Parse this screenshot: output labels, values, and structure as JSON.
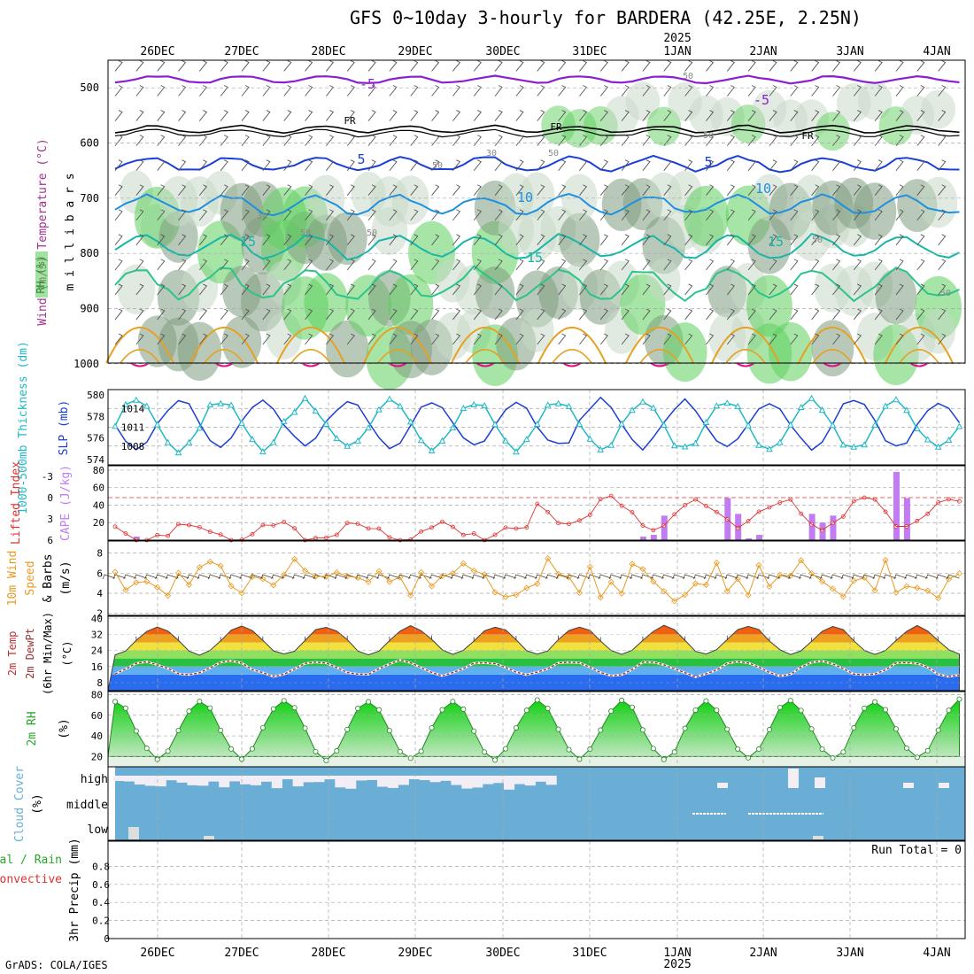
{
  "title": "GFS 0~10day 3-hourly for BARDERA (42.25E, 2.25N)",
  "credit": "GrADS: COLA/IGES",
  "colors": {
    "frame": "#000000",
    "grid": "#a8a8a8",
    "rh_dark": "#7f9c7f",
    "rh_mid": "#c6d8c6",
    "rh_light": "#e5f1e5",
    "rh_green": "#5fd05f",
    "iso_purple": "#8a1fd0",
    "iso_blue": "#1a3fd6",
    "iso_cyan": "#1e90e0",
    "iso_teal": "#17b6a8",
    "iso_green": "#2bc48a",
    "iso_orange": "#e8a020",
    "iso_magenta": "#e0108a",
    "slp": "#1b3fd1",
    "thickness": "#21b8c6",
    "li": "#e03030",
    "cape": "#c07cf0",
    "wind10": "#e89a20",
    "barb": "#504030",
    "dew": "#9a3030",
    "rh2m": "#28a828",
    "cloud": "#6aaed6",
    "cloud_clear": "#f2eef6"
  },
  "chart_data": [
    {
      "type": "contour",
      "name": "pressure-level cross-section",
      "ylabels": [
        "Wind (m/s)",
        "Temperature (°C)",
        "RH (%)",
        "m i l l i b a r s"
      ],
      "yticks": [
        500,
        600,
        700,
        800,
        900,
        1000
      ],
      "ylim": [
        450,
        1050
      ],
      "date_labels": [
        "26DEC",
        "27DEC",
        "28DEC",
        "29DEC",
        "30DEC",
        "31DEC",
        "1JAN",
        "2JAN",
        "3JAN",
        "4JAN"
      ],
      "year_label": "2025",
      "isotherm_labels": [
        "-5",
        "FR",
        "5",
        "10",
        "15",
        "15",
        "-5",
        "5",
        "10",
        "15",
        "FR",
        "FR"
      ],
      "rh_labels": [
        "50",
        "30",
        "50",
        "50",
        "50",
        "50",
        "50",
        "50",
        "50",
        "30"
      ],
      "isotherms_mb": {
        "-5": 485,
        "FR": 575,
        "5": 638,
        "10": 712,
        "15": 788,
        "20": 855
      }
    },
    {
      "type": "line",
      "name": "thickness-slp",
      "ylabel_left": "1000-500mb Thickness (dm)",
      "ylabel_right": "SLP (mb)",
      "yticks_left": [
        574,
        576,
        578,
        580
      ],
      "yticks_right": [
        1008,
        1011,
        1014
      ],
      "ylim_left": [
        573.5,
        580.5
      ],
      "series": [
        {
          "name": "SLP",
          "axis": "right",
          "pattern": "diurnal",
          "min": 1007.6,
          "max": 1015.6
        },
        {
          "name": "Thickness",
          "axis": "left",
          "pattern": "diurnal",
          "min": 574.8,
          "max": 579.6
        }
      ]
    },
    {
      "type": "bar",
      "name": "lifted-index-cape",
      "ylabel_left": "Lifted Index",
      "ylabel_right": "CAPE (J/kg)",
      "yticks_left": [
        -3,
        0,
        3,
        6
      ],
      "yticks_right": [
        20,
        40,
        60,
        80
      ],
      "cape_bars": [
        {
          "step": 2,
          "value": 4
        },
        {
          "step": 50,
          "value": 4
        },
        {
          "step": 51,
          "value": 6
        },
        {
          "step": 52,
          "value": 28
        },
        {
          "step": 58,
          "value": 48
        },
        {
          "step": 59,
          "value": 30
        },
        {
          "step": 60,
          "value": 2
        },
        {
          "step": 61,
          "value": 6
        },
        {
          "step": 66,
          "value": 30
        },
        {
          "step": 67,
          "value": 20
        },
        {
          "step": 68,
          "value": 28
        },
        {
          "step": 74,
          "value": 78
        },
        {
          "step": 75,
          "value": 48
        }
      ],
      "li_range": [
        -1,
        6
      ]
    },
    {
      "type": "line",
      "name": "wind-10m",
      "ylabel": "10m Wind Speed & Barbs (m/s)",
      "yticks": [
        2,
        4,
        6,
        8
      ],
      "ylim": [
        1.8,
        9.2
      ],
      "series": [
        {
          "name": "Speed",
          "min": 2.5,
          "max": 8.5
        }
      ]
    },
    {
      "type": "area",
      "name": "temp-dewpoint",
      "ylabel": "2m Temp 2m DewPt (6hr Min/Max) (°C)",
      "yticks": [
        8,
        16,
        24,
        32,
        40
      ],
      "ylim": [
        4,
        41
      ],
      "temp_range": [
        22,
        37
      ],
      "dew_range": [
        11,
        19
      ]
    },
    {
      "type": "area",
      "name": "rh-2m",
      "ylabel": "2m RH (%)",
      "yticks": [
        20,
        40,
        60,
        80
      ],
      "ylim": [
        10,
        83
      ],
      "rh_range": [
        18,
        78
      ]
    },
    {
      "type": "bar",
      "name": "cloud-cover",
      "ylabel": "Cloud Cover (%)",
      "levels": [
        "high",
        "middle",
        "low"
      ]
    },
    {
      "type": "bar",
      "name": "precip",
      "ylabel": "3hr Precip (mm)",
      "legend_total": "Total / Rain",
      "legend_convective": "Convective",
      "run_total": "Run Total = 0",
      "yticks": [
        "0",
        "0.2",
        "0.4",
        "0.6",
        "0.8"
      ],
      "ylim": [
        0,
        1
      ]
    }
  ]
}
